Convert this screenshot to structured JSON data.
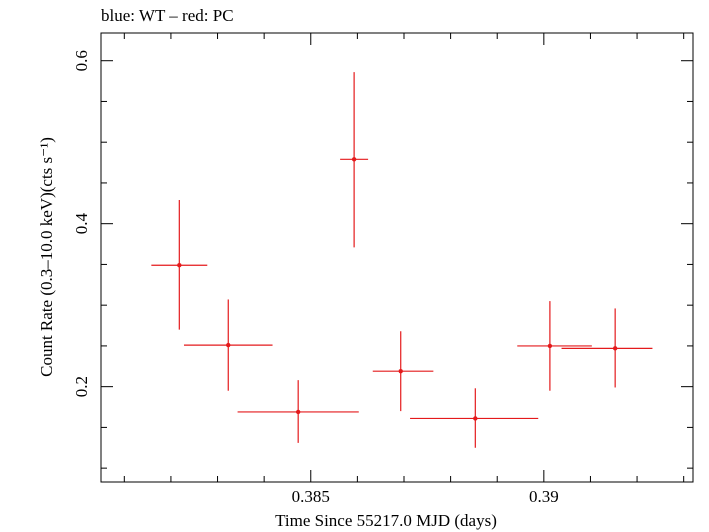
{
  "chart_data": {
    "type": "scatter",
    "title": "blue: WT – red: PC",
    "xlabel": "Time Since 55217.0 MJD (days)",
    "ylabel": "Count Rate (0.3–10.0 keV)(cts s⁻¹)",
    "xlim": [
      0.3805,
      0.3932
    ],
    "ylim": [
      0.083,
      0.634
    ],
    "x_ticks": [
      0.385,
      0.39
    ],
    "x_tick_labels": [
      "0.385",
      "0.39"
    ],
    "y_ticks": [
      0.2,
      0.4,
      0.6
    ],
    "y_tick_labels": [
      "0.2",
      "0.4",
      "0.6"
    ],
    "x_minor_step": 0.001,
    "y_minor_step": 0.05,
    "grid": false,
    "series": [
      {
        "color": "#e41a1c",
        "points": [
          {
            "x": 0.38218,
            "xlo": 0.38158,
            "xhi": 0.38278,
            "y": 0.349,
            "ylo": 0.27,
            "yhi": 0.429
          },
          {
            "x": 0.38323,
            "xlo": 0.38228,
            "xhi": 0.38418,
            "y": 0.251,
            "ylo": 0.195,
            "yhi": 0.307
          },
          {
            "x": 0.38473,
            "xlo": 0.38343,
            "xhi": 0.38603,
            "y": 0.169,
            "ylo": 0.131,
            "yhi": 0.208
          },
          {
            "x": 0.38593,
            "xlo": 0.38563,
            "xhi": 0.38623,
            "y": 0.479,
            "ylo": 0.371,
            "yhi": 0.586
          },
          {
            "x": 0.38693,
            "xlo": 0.38633,
            "xhi": 0.38763,
            "y": 0.219,
            "ylo": 0.17,
            "yhi": 0.268
          },
          {
            "x": 0.38853,
            "xlo": 0.38713,
            "xhi": 0.38988,
            "y": 0.161,
            "ylo": 0.125,
            "yhi": 0.198
          },
          {
            "x": 0.39013,
            "xlo": 0.38943,
            "xhi": 0.39103,
            "y": 0.25,
            "ylo": 0.195,
            "yhi": 0.305
          },
          {
            "x": 0.39153,
            "xlo": 0.39038,
            "xhi": 0.39233,
            "y": 0.247,
            "ylo": 0.199,
            "yhi": 0.296
          }
        ]
      }
    ]
  }
}
